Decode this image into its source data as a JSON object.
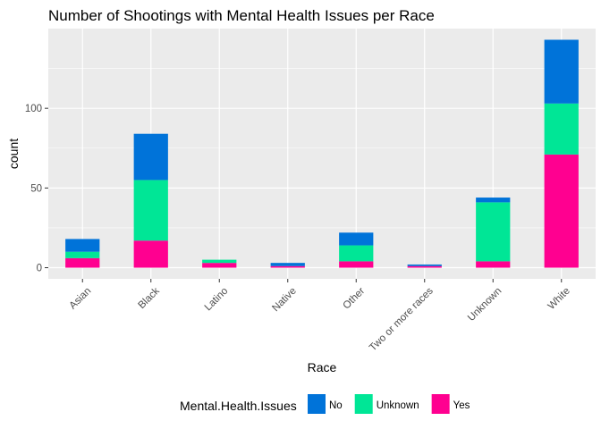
{
  "chart_data": {
    "type": "bar",
    "stacked": true,
    "title": "Number of Shootings with Mental Health Issues per Race",
    "xlabel": "Race",
    "ylabel": "count",
    "categories": [
      "Asian",
      "Black",
      "Latino",
      "Native",
      "Other",
      "Two or more races",
      "Unknown",
      "White"
    ],
    "series": [
      {
        "name": "Yes",
        "color": "#ff0090",
        "values": [
          6,
          17,
          3,
          1,
          4,
          1,
          4,
          71
        ]
      },
      {
        "name": "Unknown",
        "color": "#00e696",
        "values": [
          4,
          38,
          2,
          0,
          10,
          0,
          37,
          32
        ]
      },
      {
        "name": "No",
        "color": "#0073d9",
        "values": [
          8,
          29,
          0,
          2,
          8,
          1,
          3,
          40
        ]
      }
    ],
    "yticks": [
      0,
      50,
      100
    ],
    "ylim": [
      -7,
      150
    ],
    "grid": true,
    "legend": {
      "position": "bottom",
      "title": "Mental.Health.Issues",
      "entries": [
        {
          "label": "No",
          "color": "#0073d9"
        },
        {
          "label": "Unknown",
          "color": "#00e696"
        },
        {
          "label": "Yes",
          "color": "#ff0090"
        }
      ]
    },
    "panel_background": "#ebebeb",
    "grid_color": "#ffffff"
  }
}
